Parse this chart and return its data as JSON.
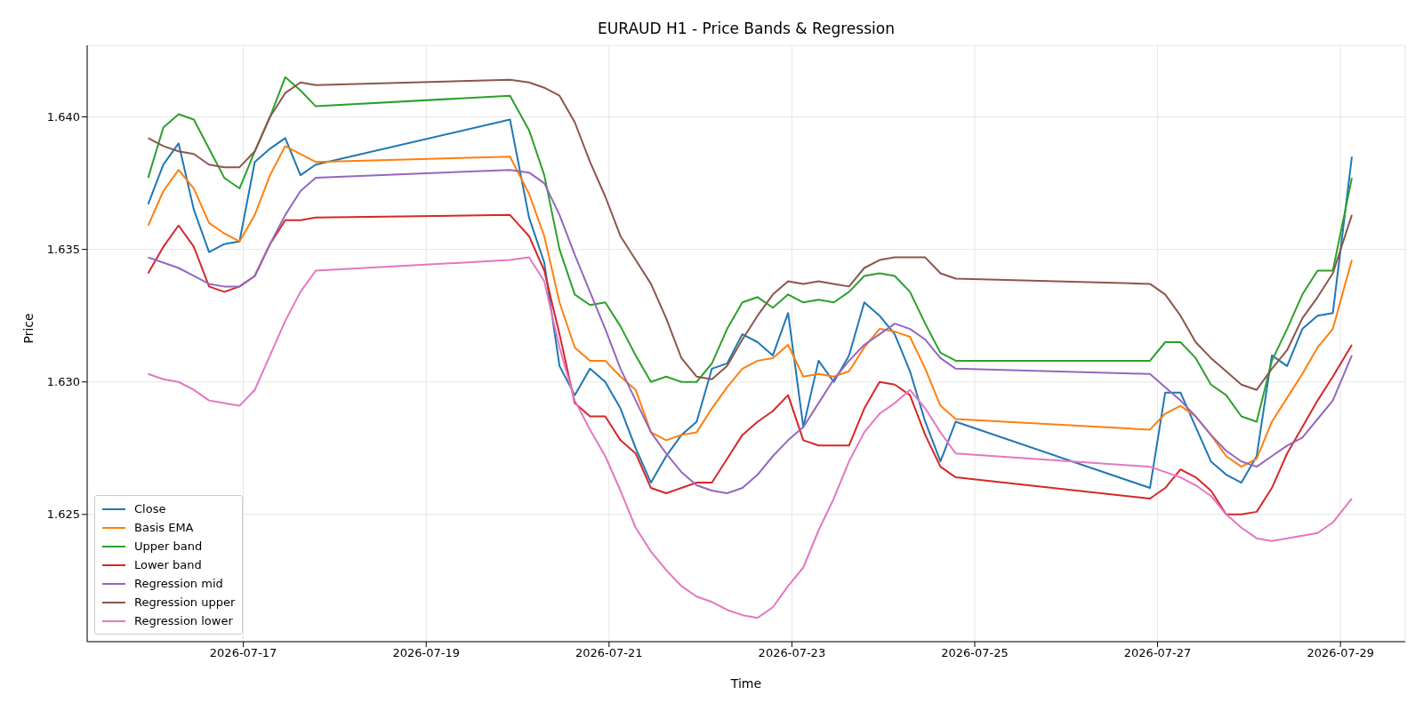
{
  "chart_data": {
    "type": "line",
    "title": "EURAUD H1 - Price Bands & Regression",
    "xlabel": "Time",
    "ylabel": "Price",
    "x": [
      "2026-07-15T23:00",
      "2026-07-16T03:00",
      "2026-07-16T07:00",
      "2026-07-16T11:00",
      "2026-07-16T15:00",
      "2026-07-16T19:00",
      "2026-07-16T23:00",
      "2026-07-17T03:00",
      "2026-07-17T07:00",
      "2026-07-17T11:00",
      "2026-07-17T15:00",
      "2026-07-17T19:00",
      "2026-07-19T22:00",
      "2026-07-20T03:00",
      "2026-07-20T07:00",
      "2026-07-20T11:00",
      "2026-07-20T15:00",
      "2026-07-20T19:00",
      "2026-07-20T23:00",
      "2026-07-21T03:00",
      "2026-07-21T07:00",
      "2026-07-21T11:00",
      "2026-07-21T15:00",
      "2026-07-21T19:00",
      "2026-07-21T23:00",
      "2026-07-22T03:00",
      "2026-07-22T07:00",
      "2026-07-22T11:00",
      "2026-07-22T15:00",
      "2026-07-22T19:00",
      "2026-07-22T23:00",
      "2026-07-23T03:00",
      "2026-07-23T07:00",
      "2026-07-23T11:00",
      "2026-07-23T15:00",
      "2026-07-23T19:00",
      "2026-07-23T23:00",
      "2026-07-24T03:00",
      "2026-07-24T07:00",
      "2026-07-24T11:00",
      "2026-07-24T15:00",
      "2026-07-24T19:00",
      "2026-07-26T22:00",
      "2026-07-27T02:00",
      "2026-07-27T06:00",
      "2026-07-27T10:00",
      "2026-07-27T14:00",
      "2026-07-27T18:00",
      "2026-07-27T22:00",
      "2026-07-28T02:00",
      "2026-07-28T06:00",
      "2026-07-28T10:00",
      "2026-07-28T14:00",
      "2026-07-28T18:00",
      "2026-07-28T22:00",
      "2026-07-29T03:00"
    ],
    "series": [
      {
        "name": "Close",
        "color": "#1f77b4",
        "values": [
          1.6367,
          1.6382,
          1.639,
          1.6365,
          1.6349,
          1.6352,
          1.6353,
          1.6383,
          1.6388,
          1.6392,
          1.6378,
          1.6382,
          1.6399,
          1.6362,
          1.6345,
          1.6306,
          1.6295,
          1.6305,
          1.63,
          1.629,
          1.6275,
          1.6262,
          1.6272,
          1.628,
          1.6285,
          1.6305,
          1.6307,
          1.6318,
          1.6315,
          1.631,
          1.6326,
          1.6283,
          1.6308,
          1.63,
          1.631,
          1.633,
          1.6325,
          1.6318,
          1.6304,
          1.6285,
          1.627,
          1.6285,
          1.626,
          1.6296,
          1.6296,
          1.6283,
          1.627,
          1.6265,
          1.6262,
          1.6272,
          1.631,
          1.6306,
          1.632,
          1.6325,
          1.6326,
          1.6385
        ]
      },
      {
        "name": "Basis EMA",
        "color": "#ff7f0e",
        "values": [
          1.6359,
          1.6372,
          1.638,
          1.6373,
          1.636,
          1.6356,
          1.6353,
          1.6363,
          1.6378,
          1.6389,
          1.6386,
          1.6383,
          1.6385,
          1.6371,
          1.6355,
          1.633,
          1.6313,
          1.6308,
          1.6308,
          1.6302,
          1.6297,
          1.6281,
          1.6278,
          1.628,
          1.6281,
          1.629,
          1.6298,
          1.6305,
          1.6308,
          1.6309,
          1.6314,
          1.6302,
          1.6303,
          1.6302,
          1.6304,
          1.6313,
          1.632,
          1.6319,
          1.6317,
          1.6305,
          1.6291,
          1.6286,
          1.6282,
          1.6288,
          1.6291,
          1.6287,
          1.628,
          1.6272,
          1.6268,
          1.6271,
          1.6285,
          1.6294,
          1.6303,
          1.6313,
          1.632,
          1.6346
        ]
      },
      {
        "name": "Upper band",
        "color": "#2ca02c",
        "values": [
          1.6377,
          1.6396,
          1.6401,
          1.6399,
          1.6388,
          1.6377,
          1.6373,
          1.6387,
          1.64,
          1.6415,
          1.641,
          1.6404,
          1.6408,
          1.6395,
          1.6378,
          1.635,
          1.6333,
          1.6329,
          1.633,
          1.6321,
          1.631,
          1.63,
          1.6302,
          1.63,
          1.63,
          1.6307,
          1.632,
          1.633,
          1.6332,
          1.6328,
          1.6333,
          1.633,
          1.6331,
          1.633,
          1.6334,
          1.634,
          1.6341,
          1.634,
          1.6334,
          1.6322,
          1.6311,
          1.6308,
          1.6308,
          1.6315,
          1.6315,
          1.6309,
          1.6299,
          1.6295,
          1.6287,
          1.6285,
          1.6308,
          1.632,
          1.6333,
          1.6342,
          1.6342,
          1.6377
        ]
      },
      {
        "name": "Lower band",
        "color": "#d62728",
        "values": [
          1.6341,
          1.6351,
          1.6359,
          1.6351,
          1.6336,
          1.6334,
          1.6336,
          1.634,
          1.6352,
          1.6361,
          1.6361,
          1.6362,
          1.6363,
          1.6355,
          1.6342,
          1.6318,
          1.6292,
          1.6287,
          1.6287,
          1.6278,
          1.6273,
          1.626,
          1.6258,
          1.626,
          1.6262,
          1.6262,
          1.6271,
          1.628,
          1.6285,
          1.6289,
          1.6295,
          1.6278,
          1.6276,
          1.6276,
          1.6276,
          1.629,
          1.63,
          1.6299,
          1.6295,
          1.628,
          1.6268,
          1.6264,
          1.6256,
          1.626,
          1.6267,
          1.6264,
          1.6259,
          1.625,
          1.625,
          1.6251,
          1.626,
          1.6273,
          1.6283,
          1.6293,
          1.6302,
          1.6314
        ]
      },
      {
        "name": "Regression mid",
        "color": "#9467bd",
        "values": [
          1.6347,
          1.6345,
          1.6343,
          1.634,
          1.6337,
          1.6336,
          1.6336,
          1.634,
          1.6352,
          1.6363,
          1.6372,
          1.6377,
          1.638,
          1.6379,
          1.6375,
          1.6363,
          1.6348,
          1.6334,
          1.632,
          1.6305,
          1.6293,
          1.6281,
          1.6273,
          1.6266,
          1.6261,
          1.6259,
          1.6258,
          1.626,
          1.6265,
          1.6272,
          1.6278,
          1.6283,
          1.6292,
          1.6301,
          1.6308,
          1.6314,
          1.6318,
          1.6322,
          1.632,
          1.6316,
          1.6309,
          1.6305,
          1.6303,
          1.6298,
          1.6293,
          1.6287,
          1.628,
          1.6274,
          1.627,
          1.6268,
          1.6272,
          1.6276,
          1.6279,
          1.6286,
          1.6293,
          1.631
        ]
      },
      {
        "name": "Regression upper",
        "color": "#8c564b",
        "values": [
          1.6392,
          1.6389,
          1.6387,
          1.6386,
          1.6382,
          1.6381,
          1.6381,
          1.6387,
          1.64,
          1.6409,
          1.6413,
          1.6412,
          1.6414,
          1.6413,
          1.6411,
          1.6408,
          1.6398,
          1.6383,
          1.637,
          1.6355,
          1.6346,
          1.6337,
          1.6324,
          1.6309,
          1.6302,
          1.6301,
          1.6306,
          1.6316,
          1.6325,
          1.6333,
          1.6338,
          1.6337,
          1.6338,
          1.6337,
          1.6336,
          1.6343,
          1.6346,
          1.6347,
          1.6347,
          1.6347,
          1.6341,
          1.6339,
          1.6337,
          1.6333,
          1.6325,
          1.6315,
          1.6309,
          1.6304,
          1.6299,
          1.6297,
          1.6305,
          1.6312,
          1.6324,
          1.6332,
          1.6341,
          1.6363
        ]
      },
      {
        "name": "Regression lower",
        "color": "#e377c2",
        "values": [
          1.6303,
          1.6301,
          1.63,
          1.6297,
          1.6293,
          1.6292,
          1.6291,
          1.6297,
          1.631,
          1.6323,
          1.6334,
          1.6342,
          1.6346,
          1.6347,
          1.6338,
          1.6313,
          1.6293,
          1.6282,
          1.6272,
          1.6259,
          1.6245,
          1.6236,
          1.6229,
          1.6223,
          1.6219,
          1.6217,
          1.6214,
          1.6212,
          1.6211,
          1.6215,
          1.6223,
          1.623,
          1.6244,
          1.6256,
          1.627,
          1.6281,
          1.6288,
          1.6292,
          1.6297,
          1.629,
          1.6281,
          1.6273,
          1.6268,
          1.6266,
          1.6264,
          1.6261,
          1.6257,
          1.625,
          1.6245,
          1.6241,
          1.624,
          1.6241,
          1.6242,
          1.6243,
          1.6247,
          1.6256
        ]
      }
    ],
    "xlim": [
      "2026-07-15T07:00",
      "2026-07-29T17:00"
    ],
    "xticks": [
      "2026-07-17",
      "2026-07-19",
      "2026-07-21",
      "2026-07-23",
      "2026-07-25",
      "2026-07-27",
      "2026-07-29"
    ],
    "ylim": [
      1.6202,
      1.6427
    ],
    "yticks": [
      {
        "value": 1.625,
        "label": "1.625"
      },
      {
        "value": 1.63,
        "label": "1.630"
      },
      {
        "value": 1.635,
        "label": "1.635"
      },
      {
        "value": 1.64,
        "label": "1.640"
      }
    ],
    "grid": true,
    "legend": "bottom left"
  }
}
